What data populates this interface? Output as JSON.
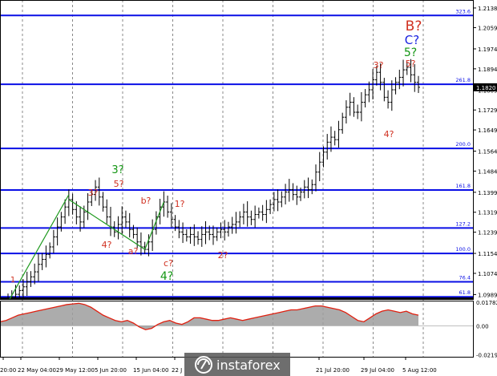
{
  "chart_data": [
    {
      "type": "candlestick",
      "price_scale": {
        "ticks": [
          "1.2138",
          "1.2059",
          "1.1974",
          "1.1894",
          "1.1809",
          "1.1729",
          "1.1649",
          "1.1564",
          "1.1484",
          "1.1399",
          "1.1319",
          "1.1239",
          "1.1154",
          "1.1074",
          "1.0989"
        ],
        "ylim": [
          1.0971,
          1.217
        ]
      },
      "current_price": "1.1820",
      "fib_levels": [
        {
          "label": "323.6",
          "price": 1.2108
        },
        {
          "label": "261.8",
          "price": 1.1832
        },
        {
          "label": "200.0",
          "price": 1.1575
        },
        {
          "label": "161.8",
          "price": 1.1408
        },
        {
          "label": "127.2",
          "price": 1.1256
        },
        {
          "label": "100.0",
          "price": 1.1154
        },
        {
          "label": "76.4",
          "price": 1.104
        },
        {
          "label": "61.8",
          "price": 1.098
        }
      ],
      "time_labels": [
        "20:00",
        "22 May 04:00",
        "29 May 12:00",
        "5 Jun 20:00",
        "15 Jun 04:00",
        "22 J",
        "21 Jul 20:00",
        "29 Jul 04:00",
        "5 Aug 12:00"
      ],
      "closes": [
        1.0975,
        1.0978,
        1.099,
        1.1005,
        1.102,
        1.104,
        1.106,
        1.108,
        1.111,
        1.113,
        1.115,
        1.118,
        1.122,
        1.126,
        1.13,
        1.134,
        1.137,
        1.133,
        1.13,
        1.128,
        1.132,
        1.136,
        1.139,
        1.142,
        1.138,
        1.134,
        1.13,
        1.126,
        1.124,
        1.127,
        1.13,
        1.128,
        1.125,
        1.123,
        1.12,
        1.118,
        1.117,
        1.12,
        1.125,
        1.13,
        1.134,
        1.136,
        1.132,
        1.129,
        1.126,
        1.124,
        1.123,
        1.122,
        1.123,
        1.122,
        1.121,
        1.123,
        1.124,
        1.123,
        1.122,
        1.124,
        1.125,
        1.124,
        1.126,
        1.127,
        1.128,
        1.13,
        1.132,
        1.13,
        1.129,
        1.131,
        1.132,
        1.131,
        1.133,
        1.135,
        1.137,
        1.136,
        1.138,
        1.14,
        1.141,
        1.139,
        1.138,
        1.14,
        1.142,
        1.141,
        1.143,
        1.148,
        1.152,
        1.156,
        1.16,
        1.162,
        1.161,
        1.165,
        1.17,
        1.174,
        1.176,
        1.172,
        1.172,
        1.176,
        1.179,
        1.181,
        1.185,
        1.188,
        1.184,
        1.178,
        1.176,
        1.181,
        1.184,
        1.186,
        1.189,
        1.19,
        1.187,
        1.184,
        1.182
      ]
    },
    {
      "type": "area",
      "name": "oscillator",
      "ticks": [
        "0.01782",
        "0.00",
        "-0.02198"
      ],
      "ylim": [
        -0.0235,
        0.019
      ],
      "values": [
        0.003,
        0.004,
        0.006,
        0.008,
        0.009,
        0.01,
        0.011,
        0.012,
        0.013,
        0.014,
        0.015,
        0.016,
        0.0165,
        0.017,
        0.016,
        0.014,
        0.011,
        0.008,
        0.006,
        0.004,
        0.003,
        0.004,
        0.002,
        -0.001,
        -0.003,
        -0.002,
        0.001,
        0.003,
        0.004,
        0.002,
        0.001,
        0.003,
        0.006,
        0.006,
        0.005,
        0.004,
        0.004,
        0.005,
        0.006,
        0.005,
        0.004,
        0.005,
        0.006,
        0.007,
        0.008,
        0.009,
        0.01,
        0.011,
        0.012,
        0.012,
        0.013,
        0.014,
        0.015,
        0.015,
        0.014,
        0.013,
        0.012,
        0.01,
        0.007,
        0.004,
        0.003,
        0.006,
        0.009,
        0.011,
        0.012,
        0.011,
        0.01,
        0.011,
        0.009,
        0.008
      ]
    }
  ],
  "wave_labels": [
    {
      "text": "1",
      "color": "#d03020"
    },
    {
      "text": "3?",
      "color": "#d03020"
    },
    {
      "text": "5?",
      "color": "#d03020"
    },
    {
      "text": "3?",
      "color": "#139613"
    },
    {
      "text": "b?",
      "color": "#d03020"
    },
    {
      "text": "1?",
      "color": "#d03020"
    },
    {
      "text": "4?",
      "color": "#d03020"
    },
    {
      "text": "a?",
      "color": "#d03020"
    },
    {
      "text": "c?",
      "color": "#d03020"
    },
    {
      "text": "4?",
      "color": "#139613"
    },
    {
      "text": "2?",
      "color": "#d03020"
    },
    {
      "text": "3?",
      "color": "#d03020"
    },
    {
      "text": "4?",
      "color": "#d03020"
    },
    {
      "text": "5?",
      "color": "#d03020"
    },
    {
      "text": "5?",
      "color": "#139613"
    },
    {
      "text": "C?",
      "color": "#1a22e0"
    },
    {
      "text": "B?",
      "color": "#d03020"
    }
  ],
  "watermark": "instaforex",
  "colors": {
    "level_line": "#0a0fe6",
    "green_line": "#1f9a1f",
    "osc_line": "#e02010",
    "osc_fill": "#9e9e9e",
    "grid": "#6b6b6b",
    "bars": "#000000"
  }
}
